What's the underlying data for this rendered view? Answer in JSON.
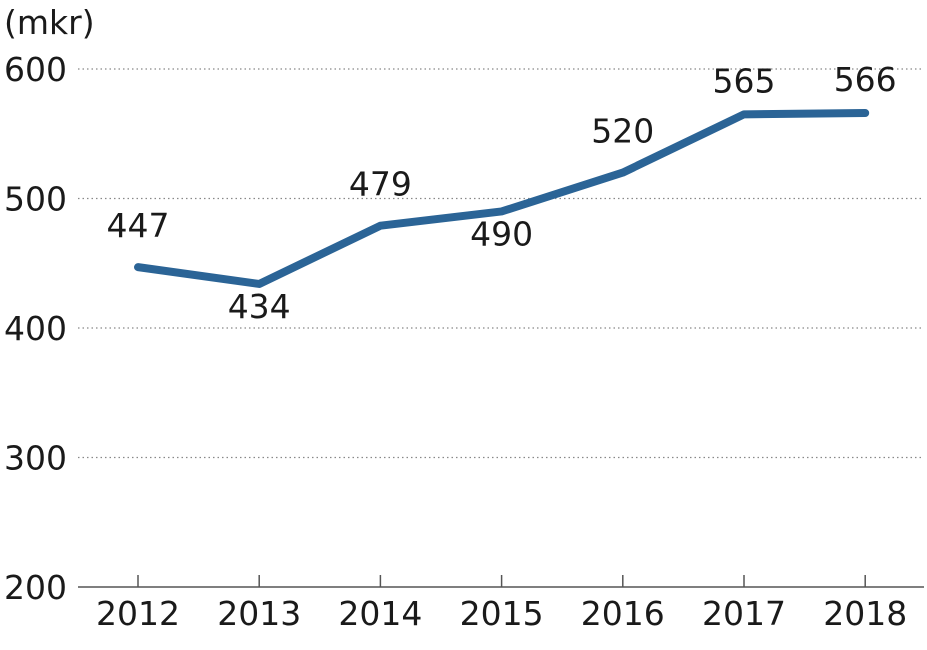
{
  "chart_data": {
    "type": "line",
    "ylabel": "(mkr)",
    "categories": [
      "2012",
      "2013",
      "2014",
      "2015",
      "2016",
      "2017",
      "2018"
    ],
    "series": [
      {
        "values": [
          447,
          434,
          479,
          490,
          520,
          565,
          566
        ]
      }
    ],
    "data_labels": [
      "447",
      "434",
      "479",
      "490",
      "520",
      "565",
      "566"
    ],
    "yticks": [
      200,
      300,
      400,
      500,
      600
    ],
    "ylim": [
      200,
      600
    ],
    "grid": "horizontal-dotted",
    "colors": {
      "line": "#2b6496",
      "grid": "#888888",
      "axis": "#555555"
    }
  }
}
